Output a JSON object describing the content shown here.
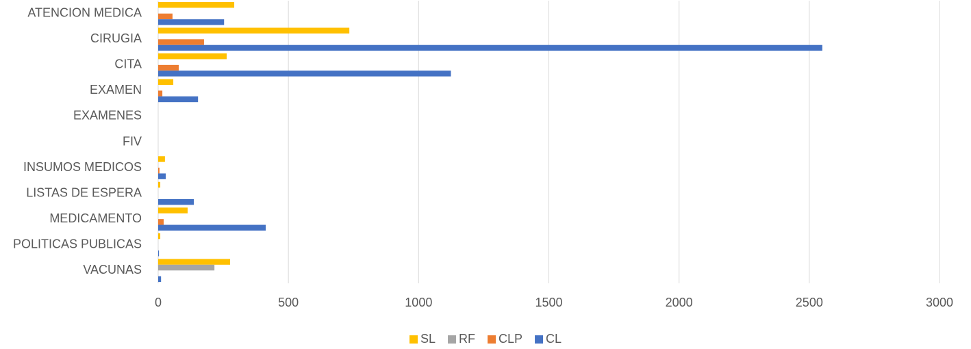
{
  "chart_data": {
    "type": "hbar",
    "categories": [
      "ATENCION MEDICA",
      "CIRUGIA",
      "CITA",
      "EXAMEN",
      "EXAMENES",
      "FIV",
      "INSUMOS MEDICOS",
      "LISTAS DE ESPERA",
      "MEDICAMENTO",
      "POLITICAS PUBLICAS",
      "VACUNAS"
    ],
    "series": [
      {
        "name": "SL",
        "color": "#ffc000",
        "values": [
          292,
          734,
          263,
          58,
          0,
          0,
          26,
          8,
          113,
          8,
          276
        ]
      },
      {
        "name": "RF",
        "color": "#a5a5a5",
        "values": [
          0,
          0,
          0,
          0,
          0,
          0,
          0,
          0,
          0,
          0,
          216
        ]
      },
      {
        "name": "CLP",
        "color": "#ed7d31",
        "values": [
          55,
          176,
          79,
          16,
          0,
          0,
          5,
          0,
          21,
          0,
          0
        ]
      },
      {
        "name": "CL",
        "color": "#4472c4",
        "values": [
          253,
          2550,
          1124,
          153,
          0,
          0,
          29,
          137,
          413,
          3,
          11
        ]
      }
    ],
    "xlim": [
      0,
      3000
    ],
    "xticks": [
      0,
      500,
      1000,
      1500,
      2000,
      2500,
      3000
    ],
    "grid": true,
    "legend": "bottom"
  }
}
